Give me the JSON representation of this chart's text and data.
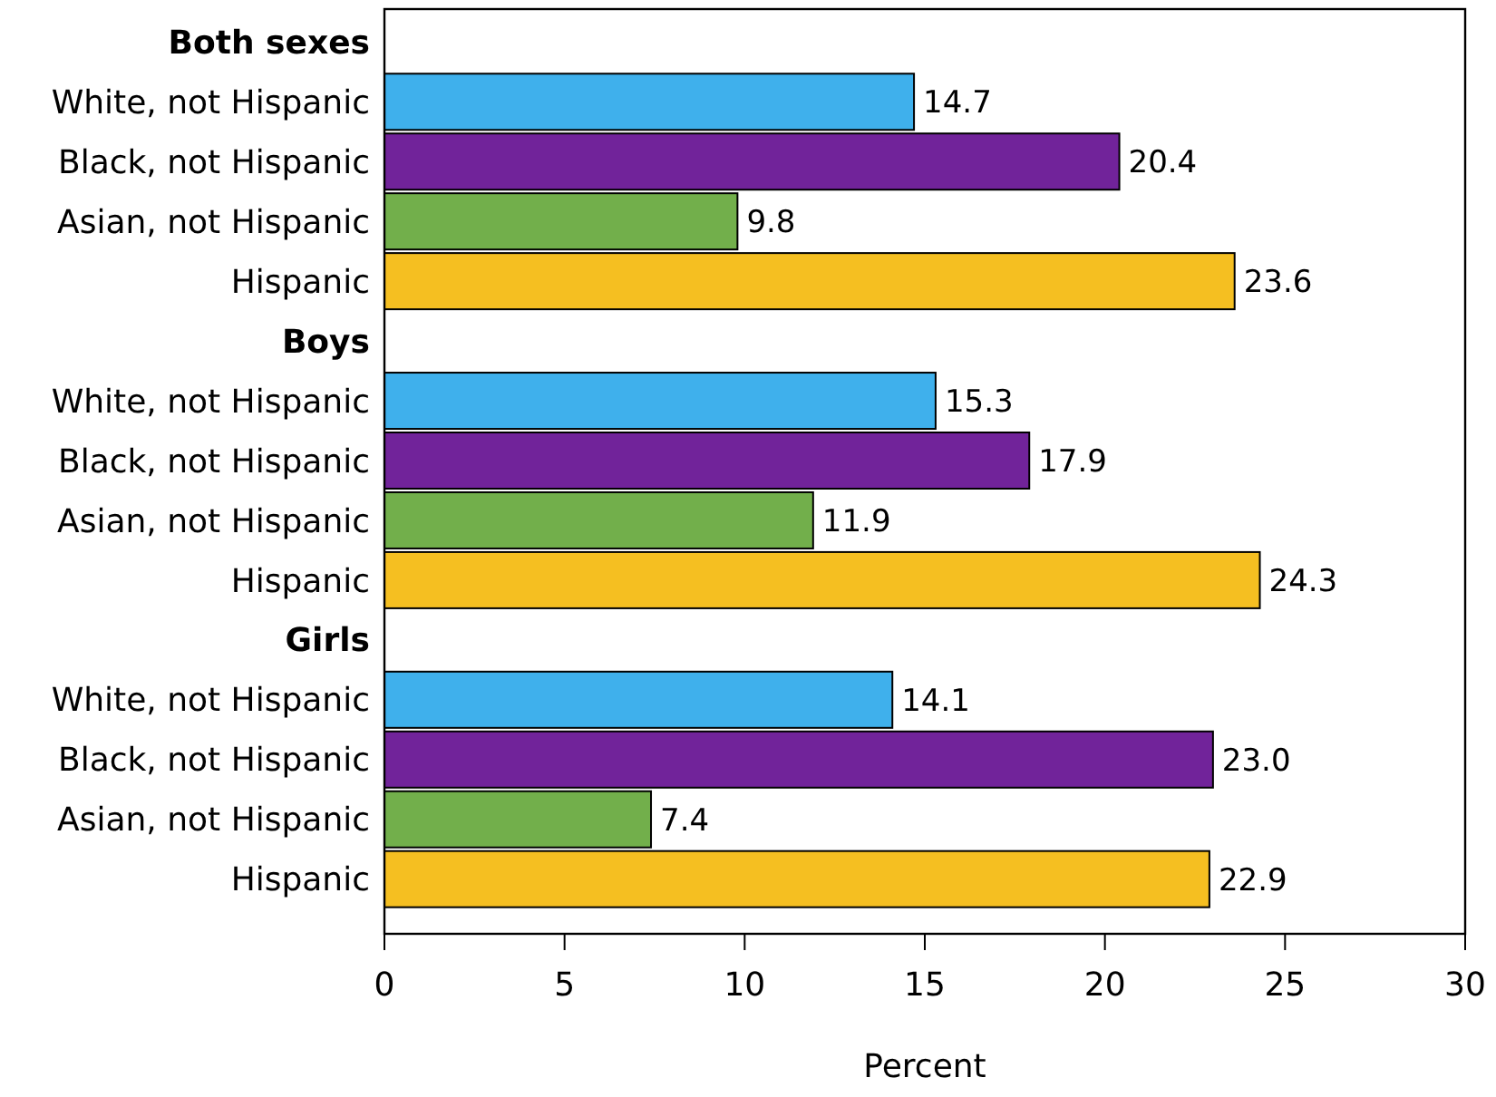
{
  "chart_data": {
    "type": "bar",
    "orientation": "horizontal",
    "xlabel": "Percent",
    "categories": [
      "Both sexes",
      "White, not Hispanic",
      "Black, not Hispanic",
      "Asian, not Hispanic",
      "Hispanic",
      "Boys",
      "White, not Hispanic",
      "Black, not Hispanic",
      "Asian, not Hispanic",
      "Hispanic",
      "Girls",
      "White, not Hispanic",
      "Black, not Hispanic",
      "Asian, not Hispanic",
      "Hispanic"
    ],
    "values": [
      null,
      14.7,
      20.4,
      9.8,
      23.6,
      null,
      15.3,
      17.9,
      11.9,
      24.3,
      null,
      14.1,
      23.0,
      7.4,
      22.9
    ],
    "value_labels": [
      null,
      "14.7",
      "20.4",
      "9.8",
      "23.6",
      null,
      "15.3",
      "17.9",
      "11.9",
      "24.3",
      null,
      "14.1",
      "23.0",
      "7.4",
      "22.9"
    ],
    "colors": [
      null,
      "#3fb0ec",
      "#71239a",
      "#72af4b",
      "#f5bf21",
      null,
      "#3fb0ec",
      "#71239a",
      "#72af4b",
      "#f5bf21",
      null,
      "#3fb0ec",
      "#71239a",
      "#72af4b",
      "#f5bf21"
    ],
    "xlim": [
      0,
      30
    ],
    "xticks": [
      0,
      5,
      10,
      15,
      20,
      25,
      30
    ],
    "grid": false
  }
}
